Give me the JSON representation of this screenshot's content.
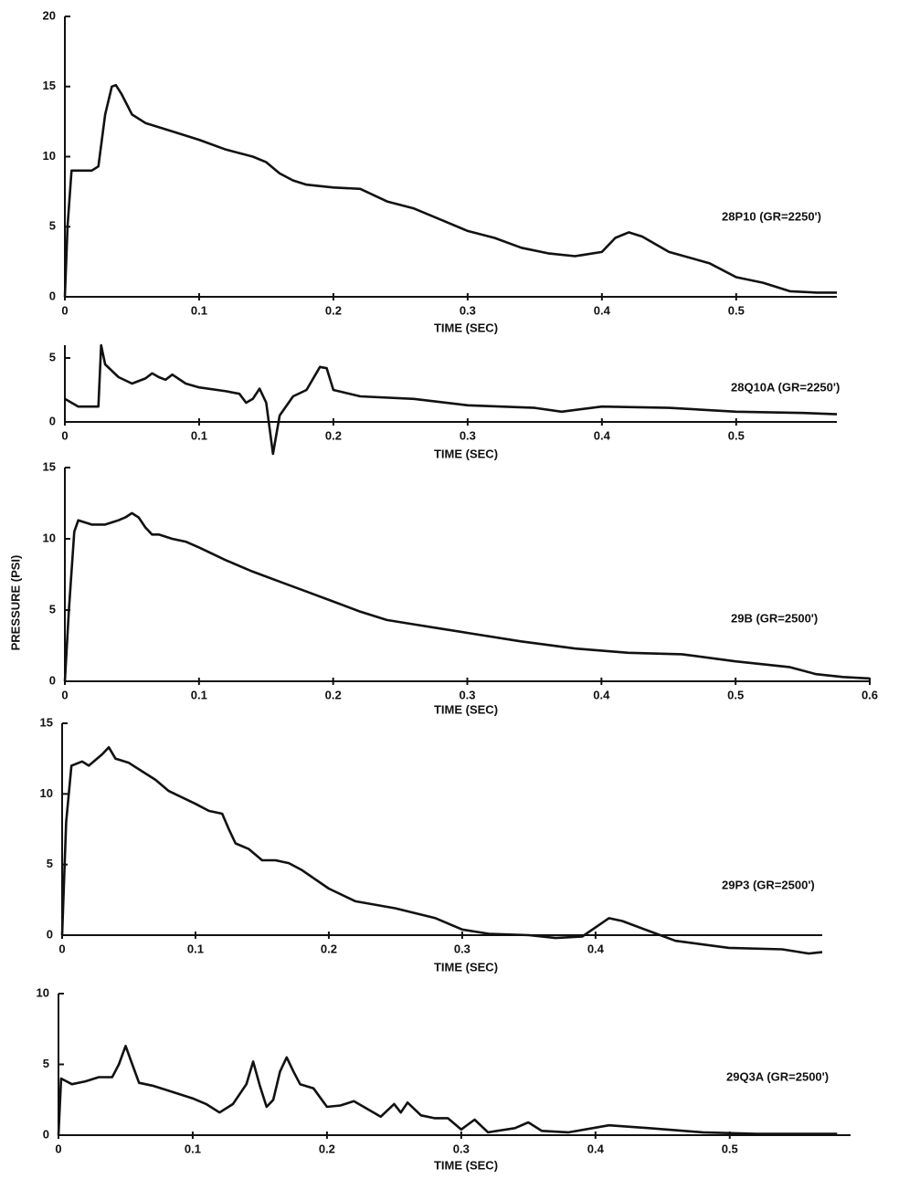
{
  "chart_data": [
    {
      "type": "line",
      "xlabel": "TIME (SEC)",
      "x": [
        0,
        0.002,
        0.005,
        0.01,
        0.02,
        0.025,
        0.03,
        0.035,
        0.038,
        0.042,
        0.05,
        0.06,
        0.08,
        0.1,
        0.12,
        0.14,
        0.15,
        0.16,
        0.17,
        0.18,
        0.2,
        0.22,
        0.24,
        0.26,
        0.28,
        0.3,
        0.32,
        0.34,
        0.36,
        0.38,
        0.4,
        0.41,
        0.42,
        0.43,
        0.45,
        0.48,
        0.5,
        0.52,
        0.54,
        0.56,
        0.575
      ],
      "series": [
        {
          "name": "28P10 (GR=2250')",
          "color": "#111111",
          "values": [
            0,
            5,
            9,
            9,
            9,
            9.3,
            13,
            15,
            15.1,
            14.5,
            13,
            12.4,
            11.8,
            11.2,
            10.5,
            10,
            9.6,
            8.8,
            8.3,
            8,
            7.8,
            7.7,
            6.8,
            6.3,
            5.5,
            4.7,
            4.2,
            3.5,
            3.1,
            2.9,
            3.2,
            4.2,
            4.6,
            4.3,
            3.2,
            2.4,
            1.4,
            1,
            0.4,
            0.3,
            0.3
          ]
        }
      ],
      "xlim": [
        0,
        0.575
      ],
      "ylim": [
        0,
        20
      ],
      "xticks": [
        0,
        0.1,
        0.2,
        0.3,
        0.4,
        0.5
      ],
      "yticks": [
        0,
        5,
        10,
        15,
        20
      ]
    },
    {
      "type": "line",
      "xlabel": "TIME (SEC)",
      "x": [
        0,
        0.01,
        0.02,
        0.025,
        0.027,
        0.03,
        0.04,
        0.05,
        0.06,
        0.065,
        0.07,
        0.075,
        0.08,
        0.09,
        0.1,
        0.12,
        0.13,
        0.135,
        0.14,
        0.145,
        0.15,
        0.155,
        0.16,
        0.17,
        0.18,
        0.19,
        0.195,
        0.2,
        0.22,
        0.26,
        0.3,
        0.35,
        0.37,
        0.4,
        0.45,
        0.5,
        0.55,
        0.575
      ],
      "series": [
        {
          "name": "28Q10A (GR=2250')",
          "color": "#111111",
          "values": [
            1.8,
            1.2,
            1.2,
            1.2,
            6,
            4.5,
            3.5,
            3,
            3.4,
            3.8,
            3.5,
            3.3,
            3.7,
            3,
            2.7,
            2.4,
            2.2,
            1.5,
            1.8,
            2.6,
            1.5,
            -2.5,
            0.5,
            2,
            2.5,
            4.3,
            4.2,
            2.5,
            2,
            1.8,
            1.3,
            1.1,
            0.8,
            1.2,
            1.1,
            0.8,
            0.7,
            0.6
          ]
        }
      ],
      "xlim": [
        0,
        0.575
      ],
      "ylim": [
        0,
        6
      ],
      "xticks": [
        0,
        0.1,
        0.2,
        0.3,
        0.4,
        0.5
      ],
      "yticks": [
        0,
        5
      ]
    },
    {
      "type": "line",
      "xlabel": "TIME (SEC)",
      "ylabel": "PRESSURE (PSI)",
      "x": [
        0,
        0.003,
        0.007,
        0.01,
        0.02,
        0.03,
        0.04,
        0.045,
        0.05,
        0.055,
        0.06,
        0.065,
        0.07,
        0.08,
        0.09,
        0.1,
        0.12,
        0.14,
        0.16,
        0.18,
        0.2,
        0.22,
        0.24,
        0.26,
        0.28,
        0.3,
        0.34,
        0.38,
        0.42,
        0.46,
        0.5,
        0.54,
        0.56,
        0.58,
        0.6
      ],
      "series": [
        {
          "name": "29B (GR=2500')",
          "color": "#111111",
          "values": [
            0,
            5,
            10.5,
            11.3,
            11,
            11,
            11.3,
            11.5,
            11.8,
            11.5,
            10.8,
            10.3,
            10.3,
            10,
            9.8,
            9.4,
            8.5,
            7.7,
            7,
            6.3,
            5.6,
            4.9,
            4.3,
            4,
            3.7,
            3.4,
            2.8,
            2.3,
            2,
            1.9,
            1.4,
            1,
            0.5,
            0.3,
            0.2
          ]
        }
      ],
      "xlim": [
        0,
        0.6
      ],
      "ylim": [
        0,
        15
      ],
      "xticks": [
        0,
        0.1,
        0.2,
        0.3,
        0.4,
        0.5,
        0.6
      ],
      "yticks": [
        0,
        5,
        10,
        15
      ]
    },
    {
      "type": "line",
      "xlabel": "TIME (SEC)",
      "x": [
        0,
        0.003,
        0.007,
        0.015,
        0.02,
        0.03,
        0.035,
        0.04,
        0.05,
        0.06,
        0.07,
        0.08,
        0.1,
        0.11,
        0.12,
        0.125,
        0.13,
        0.14,
        0.15,
        0.16,
        0.17,
        0.18,
        0.2,
        0.22,
        0.25,
        0.28,
        0.3,
        0.32,
        0.35,
        0.37,
        0.39,
        0.41,
        0.42,
        0.44,
        0.46,
        0.5,
        0.54,
        0.56,
        0.57
      ],
      "series": [
        {
          "name": "29P3 (GR=2500')",
          "color": "#111111",
          "values": [
            0,
            8,
            12,
            12.3,
            12,
            12.8,
            13.3,
            12.5,
            12.2,
            11.6,
            11,
            10.2,
            9.3,
            8.8,
            8.6,
            7.5,
            6.5,
            6.1,
            5.3,
            5.3,
            5.1,
            4.6,
            3.3,
            2.4,
            1.9,
            1.2,
            0.4,
            0.1,
            0,
            -0.2,
            -0.1,
            1.2,
            1,
            0.3,
            -0.4,
            -0.9,
            -1,
            -1.3,
            -1.2
          ]
        }
      ],
      "xlim": [
        0,
        0.57
      ],
      "ylim": [
        0,
        15
      ],
      "xticks": [
        0,
        0.1,
        0.2,
        0.3,
        0.4
      ],
      "yticks": [
        0,
        5,
        10,
        15
      ]
    },
    {
      "type": "line",
      "xlabel": "TIME (SEC)",
      "x": [
        0,
        0.002,
        0.01,
        0.02,
        0.03,
        0.04,
        0.045,
        0.05,
        0.055,
        0.06,
        0.07,
        0.08,
        0.1,
        0.11,
        0.12,
        0.13,
        0.14,
        0.145,
        0.15,
        0.155,
        0.16,
        0.165,
        0.17,
        0.175,
        0.18,
        0.19,
        0.2,
        0.21,
        0.22,
        0.24,
        0.25,
        0.255,
        0.26,
        0.27,
        0.28,
        0.29,
        0.3,
        0.31,
        0.32,
        0.34,
        0.35,
        0.36,
        0.38,
        0.41,
        0.44,
        0.48,
        0.52,
        0.58
      ],
      "series": [
        {
          "name": "29Q3A (GR=2500')",
          "color": "#111111",
          "values": [
            0,
            4,
            3.6,
            3.8,
            4.1,
            4.1,
            5,
            6.3,
            5,
            3.7,
            3.5,
            3.2,
            2.6,
            2.2,
            1.6,
            2.2,
            3.6,
            5.2,
            3.5,
            2,
            2.5,
            4.5,
            5.5,
            4.5,
            3.6,
            3.3,
            2,
            2.1,
            2.4,
            1.3,
            2.2,
            1.6,
            2.3,
            1.4,
            1.2,
            1.2,
            0.4,
            1.1,
            0.2,
            0.5,
            0.9,
            0.3,
            0.2,
            0.7,
            0.5,
            0.2,
            0.1,
            0.1
          ]
        }
      ],
      "xlim": [
        0,
        0.59
      ],
      "ylim": [
        0,
        10
      ],
      "xticks": [
        0,
        0.1,
        0.2,
        0.3,
        0.4,
        0.5
      ],
      "yticks": [
        0,
        5,
        10
      ]
    }
  ]
}
